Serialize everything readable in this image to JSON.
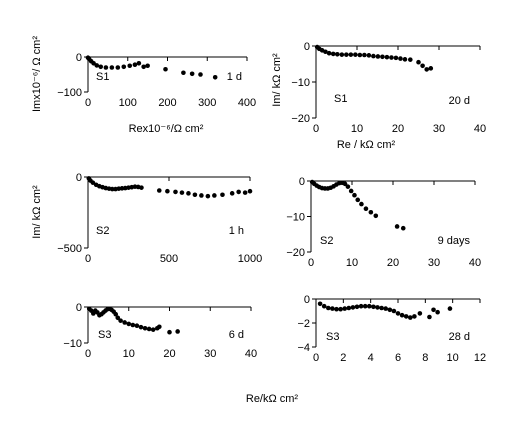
{
  "figure": {
    "xlabel": "Re/kΩ cm²"
  },
  "chart_data": [
    {
      "id": "a",
      "type": "scatter",
      "sample_label": "S1",
      "time_label": "1 d",
      "xlabel": "Rex10⁻⁶/Ω cm²",
      "ylabel": "Imx10⁻⁶/ Ω cm²",
      "xlim": [
        0,
        400
      ],
      "ylim": [
        -100,
        0
      ],
      "xticks": [
        0,
        100,
        200,
        300,
        400
      ],
      "yticks": [
        0,
        -100
      ],
      "x": [
        0,
        3,
        8,
        14,
        22,
        32,
        45,
        60,
        75,
        90,
        105,
        118,
        128,
        140,
        150,
        195,
        240,
        262,
        283,
        320
      ],
      "y": [
        -2,
        -6,
        -12,
        -18,
        -24,
        -28,
        -30,
        -30,
        -30,
        -28,
        -25,
        -22,
        -18,
        -28,
        -25,
        -35,
        -45,
        -48,
        -50,
        -58
      ]
    },
    {
      "id": "b",
      "type": "scatter",
      "sample_label": "S1",
      "time_label": "20 d",
      "xlabel": "Re / kΩ cm²",
      "ylabel": "Im/ kΩ cm²",
      "xlim": [
        0,
        40
      ],
      "ylim": [
        -20,
        0
      ],
      "xticks": [
        0,
        10,
        20,
        30,
        40
      ],
      "yticks": [
        0,
        -10,
        -20
      ],
      "x": [
        0.3,
        0.8,
        1.5,
        2.3,
        3.2,
        4.2,
        5.2,
        6.3,
        7.4,
        8.5,
        9.6,
        10.7,
        11.8,
        12.9,
        14,
        15.1,
        16.2,
        17.3,
        18.4,
        19.5,
        20.6,
        21.7,
        23,
        25,
        26,
        27,
        28
      ],
      "y": [
        -0.3,
        -0.8,
        -1.2,
        -1.6,
        -2,
        -2.2,
        -2.3,
        -2.4,
        -2.4,
        -2.4,
        -2.4,
        -2.5,
        -2.5,
        -2.6,
        -2.8,
        -2.9,
        -3,
        -3.1,
        -3.2,
        -3.3,
        -3.5,
        -3.7,
        -3.8,
        -4.5,
        -5.5,
        -6.5,
        -6.2
      ]
    },
    {
      "id": "c",
      "type": "scatter",
      "sample_label": "S2",
      "time_label": "1 h",
      "xlabel": "",
      "ylabel": "Im/ kΩ cm²",
      "xlim": [
        0,
        1000
      ],
      "ylim": [
        -500,
        0
      ],
      "xticks": [
        0,
        500,
        1000
      ],
      "yticks": [
        0,
        -500
      ],
      "x": [
        5,
        15,
        30,
        50,
        70,
        90,
        110,
        130,
        150,
        170,
        190,
        210,
        230,
        250,
        270,
        290,
        310,
        330,
        440,
        490,
        540,
        580,
        620,
        660,
        700,
        740,
        780,
        830,
        890,
        930,
        970,
        1000
      ],
      "y": [
        -10,
        -25,
        -40,
        -55,
        -65,
        -72,
        -78,
        -82,
        -85,
        -85,
        -82,
        -80,
        -78,
        -75,
        -72,
        -68,
        -70,
        -75,
        -95,
        -100,
        -105,
        -110,
        -115,
        -125,
        -130,
        -135,
        -130,
        -125,
        -115,
        -105,
        -110,
        -100
      ]
    },
    {
      "id": "d",
      "type": "scatter",
      "sample_label": "S2",
      "time_label": "9 days",
      "xlabel": "",
      "ylabel": "",
      "xlim": [
        0,
        40
      ],
      "ylim": [
        -20,
        0
      ],
      "xticks": [
        0,
        10,
        20,
        30,
        40
      ],
      "yticks": [
        0,
        -10,
        -20
      ],
      "x": [
        0.3,
        0.8,
        1.4,
        2,
        2.7,
        3.4,
        4.1,
        4.8,
        5.5,
        6.2,
        6.9,
        7.6,
        8.3,
        9,
        9.8,
        10.6,
        11.4,
        12.3,
        13.4,
        14.6,
        15.8,
        21,
        22.5
      ],
      "y": [
        -0.3,
        -0.8,
        -1.3,
        -1.7,
        -2,
        -2.1,
        -2.1,
        -1.9,
        -1.5,
        -1,
        -0.6,
        -0.5,
        -0.8,
        -1.6,
        -2.8,
        -4,
        -5.3,
        -6.5,
        -7.8,
        -8.8,
        -9.8,
        -12.8,
        -13.3
      ]
    },
    {
      "id": "e",
      "type": "scatter",
      "sample_label": "S3",
      "time_label": "6 d",
      "xlabel": "",
      "ylabel": "",
      "xlim": [
        0,
        40
      ],
      "ylim": [
        -10,
        0
      ],
      "xticks": [
        0,
        10,
        20,
        30,
        40
      ],
      "yticks": [
        0,
        -10
      ],
      "x": [
        0.3,
        0.8,
        1.3,
        1.8,
        2.3,
        2.8,
        3.3,
        3.8,
        4.3,
        4.8,
        5.3,
        5.8,
        6.3,
        6.8,
        7.3,
        8,
        9,
        10,
        11,
        12,
        13,
        14,
        15,
        16,
        17,
        17.5,
        20,
        22
      ],
      "y": [
        -0.5,
        -1,
        -1.8,
        -1,
        -1.5,
        -2.3,
        -2,
        -1.5,
        -1,
        -0.6,
        -0.5,
        -0.8,
        -1.3,
        -2,
        -3,
        -3.8,
        -4.3,
        -4.7,
        -5,
        -5.2,
        -5.6,
        -5.9,
        -6.1,
        -6.3,
        -5.9,
        -5.5,
        -7,
        -6.8
      ]
    },
    {
      "id": "f",
      "type": "scatter",
      "sample_label": "S3",
      "time_label": "28 d",
      "xlabel": "",
      "ylabel": "",
      "xlim": [
        0,
        12
      ],
      "ylim": [
        -4,
        0
      ],
      "xticks": [
        0,
        2,
        4,
        6,
        8,
        10,
        12
      ],
      "yticks": [
        0,
        -2,
        -4
      ],
      "x": [
        0.3,
        0.6,
        0.9,
        1.2,
        1.5,
        1.8,
        2.1,
        2.4,
        2.7,
        3,
        3.3,
        3.6,
        3.9,
        4.2,
        4.5,
        4.8,
        5.1,
        5.4,
        5.7,
        6,
        6.3,
        6.6,
        6.9,
        7.2,
        7.6,
        8.3,
        8.6,
        8.9,
        9.8
      ],
      "y": [
        -0.4,
        -0.6,
        -0.75,
        -0.8,
        -0.85,
        -0.85,
        -0.8,
        -0.75,
        -0.7,
        -0.65,
        -0.6,
        -0.6,
        -0.6,
        -0.65,
        -0.7,
        -0.75,
        -0.8,
        -0.9,
        -1.0,
        -1.2,
        -1.35,
        -1.45,
        -1.55,
        -1.45,
        -1.2,
        -1.5,
        -0.9,
        -1.1,
        -0.8
      ]
    }
  ]
}
